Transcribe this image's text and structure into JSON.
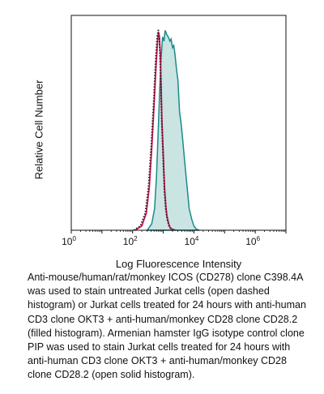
{
  "chart_data": {
    "type": "area",
    "xlabel": "Log Fluorescence Intensity",
    "ylabel": "Relative Cell Number",
    "xscale": "log",
    "xlim": [
      1,
      10000000
    ],
    "ylim": [
      0,
      1.0
    ],
    "xticks": [
      {
        "value": 1,
        "base": "10",
        "exp": "0"
      },
      {
        "value": 100,
        "base": "10",
        "exp": "2"
      },
      {
        "value": 10000,
        "base": "10",
        "exp": "4"
      },
      {
        "value": 1000000,
        "base": "10",
        "exp": "6"
      }
    ],
    "grid": false,
    "series": [
      {
        "style": "filled",
        "color": "#1a8a8a",
        "fill": "#c9e4e2",
        "x": [
          300,
          420,
          520,
          600,
          680,
          760,
          850,
          950,
          1050,
          1150,
          1300,
          1450,
          1650,
          1800,
          2000,
          2200,
          2400,
          2700,
          3000,
          3400,
          3800,
          4300,
          5000,
          6000,
          7000,
          8500,
          10000,
          12000,
          15000
        ],
        "y": [
          0,
          0.03,
          0.1,
          0.25,
          0.45,
          0.65,
          0.8,
          0.9,
          0.88,
          0.93,
          0.91,
          0.9,
          0.88,
          0.89,
          0.85,
          0.86,
          0.82,
          0.75,
          0.7,
          0.55,
          0.5,
          0.42,
          0.32,
          0.2,
          0.1,
          0.05,
          0.02,
          0.005,
          0
        ]
      },
      {
        "style": "solid",
        "color": "#d4145a",
        "x": [
          120,
          200,
          280,
          350,
          420,
          500,
          580,
          650,
          700,
          750,
          800,
          850,
          900,
          1000,
          1100,
          1200,
          1300,
          1500,
          1700,
          2000,
          2500
        ],
        "y": [
          0,
          0.02,
          0.08,
          0.2,
          0.38,
          0.58,
          0.76,
          0.88,
          0.92,
          0.9,
          0.82,
          0.68,
          0.52,
          0.35,
          0.2,
          0.12,
          0.07,
          0.03,
          0.01,
          0.004,
          0
        ]
      },
      {
        "style": "dotted",
        "color": "#222222",
        "x": [
          110,
          180,
          260,
          330,
          400,
          480,
          560,
          630,
          690,
          740,
          790,
          840,
          900,
          1000,
          1100,
          1200,
          1350,
          1550,
          1800,
          2200
        ],
        "y": [
          0,
          0.02,
          0.08,
          0.2,
          0.38,
          0.58,
          0.78,
          0.9,
          0.93,
          0.9,
          0.8,
          0.65,
          0.5,
          0.32,
          0.18,
          0.1,
          0.05,
          0.02,
          0.005,
          0
        ]
      }
    ]
  },
  "caption": "Anti-mouse/human/rat/monkey ICOS (CD278) clone C398.4A was used to stain untreated Jurkat cells (open dashed histogram) or Jurkat cells treated for 24 hours with anti-human CD3 clone OKT3 + anti-human/monkey CD28 clone CD28.2 (filled histogram). Armenian hamster IgG isotype control clone PIP was used to stain Jurkat cells treated for 24 hours with anti-human CD3 clone OKT3 + anti-human/monkey CD28 clone CD28.2 (open solid histogram)."
}
